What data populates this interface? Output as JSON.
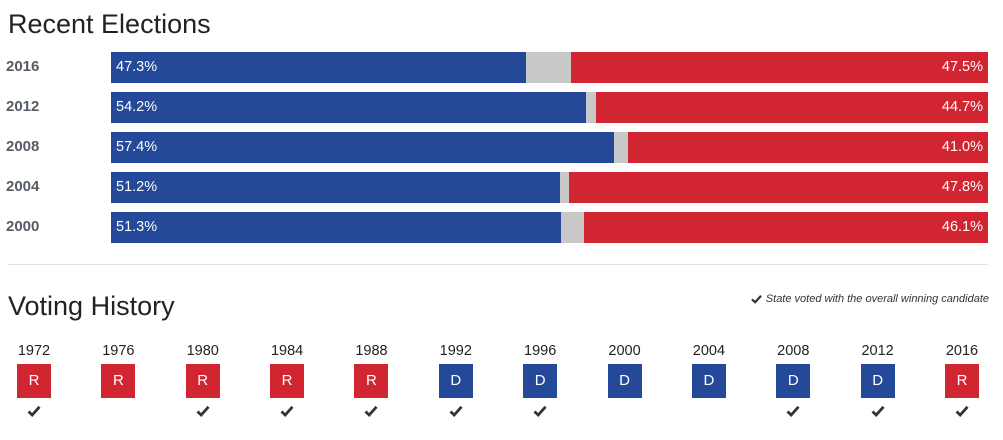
{
  "recent": {
    "title": "Recent Elections"
  },
  "history": {
    "title": "Voting History",
    "legend_text": "State voted with the overall winning candidate"
  },
  "colors": {
    "dem": "#244999",
    "rep": "#d22532",
    "other": "#c8c8c8",
    "check": "#333333"
  },
  "icons": {
    "legend": "checkmark-icon",
    "winner": "checkmark-icon"
  },
  "chart_data": [
    {
      "type": "bar",
      "stacked": true,
      "orientation": "horizontal",
      "title": "Recent Elections",
      "categories": [
        "2016",
        "2012",
        "2008",
        "2004",
        "2000"
      ],
      "series": [
        {
          "values": [
            47.3,
            54.2,
            57.4,
            51.2,
            51.3
          ],
          "labels": [
            "47.3%",
            "54.2%",
            "57.4%",
            "51.2%",
            "51.3%"
          ]
        },
        {
          "values": [
            47.5,
            44.7,
            41.0,
            47.8,
            46.1
          ],
          "labels": [
            "47.5%",
            "44.7%",
            "41.0%",
            "47.8%",
            "46.1%"
          ]
        }
      ],
      "xlim": [
        0,
        100
      ]
    },
    {
      "type": "table",
      "title": "Voting History",
      "years": [
        "1972",
        "1976",
        "1980",
        "1984",
        "1988",
        "1992",
        "1996",
        "2000",
        "2004",
        "2008",
        "2012",
        "2016"
      ],
      "party": [
        "R",
        "R",
        "R",
        "R",
        "R",
        "D",
        "D",
        "D",
        "D",
        "D",
        "D",
        "R"
      ],
      "voted_with_winner": [
        true,
        false,
        true,
        true,
        true,
        true,
        true,
        false,
        false,
        true,
        true,
        true
      ]
    }
  ]
}
